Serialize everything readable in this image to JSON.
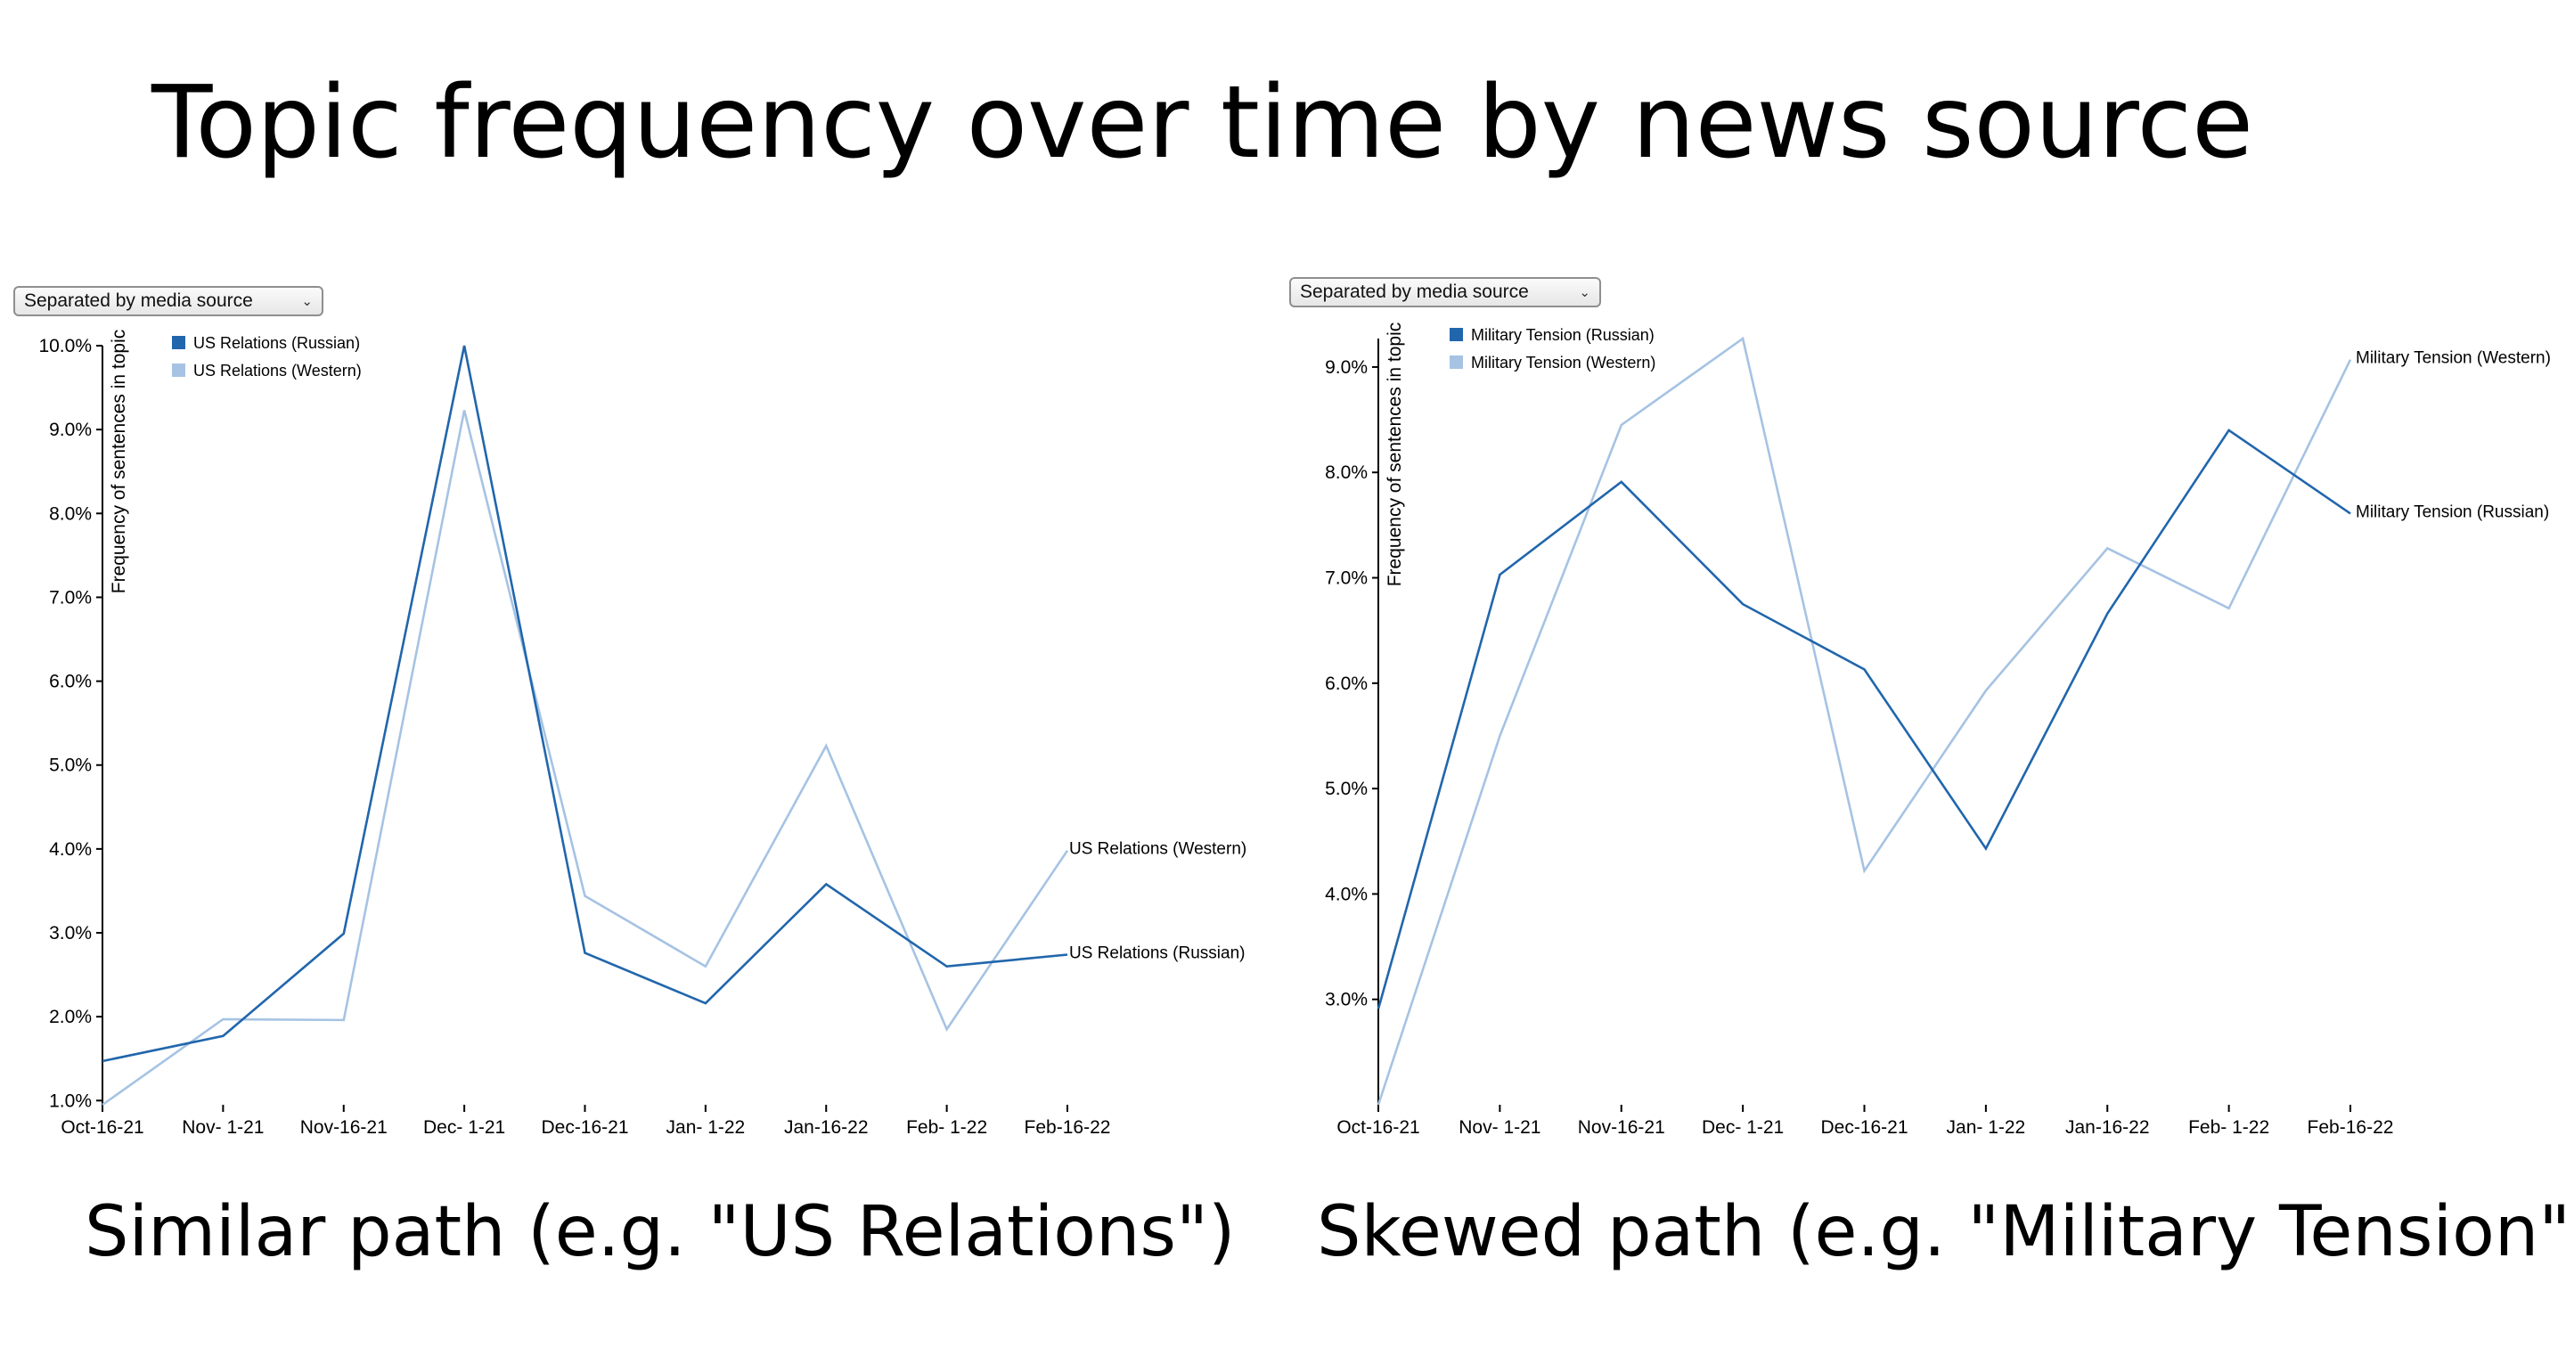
{
  "page": {
    "title": "Topic frequency over time by news source"
  },
  "colors": {
    "russian": "#2166ac",
    "western": "#a6c3e3",
    "axis": "#000000"
  },
  "charts": {
    "left": {
      "caption": "Similar path (e.g. \"US Relations\")",
      "dropdown": {
        "selected": "Separated by media source"
      }
    },
    "right": {
      "caption": "Skewed path (e.g. \"Military Tension\")",
      "dropdown": {
        "selected": "Separated by media source"
      }
    }
  },
  "chart_data": [
    {
      "type": "line",
      "categories": [
        "Oct-16-21",
        "Nov- 1-21",
        "Nov-16-21",
        "Dec- 1-21",
        "Dec-16-21",
        "Jan- 1-22",
        "Jan-16-22",
        "Feb- 1-22",
        "Feb-16-22"
      ],
      "ylabel": "Frequency of sentences in topic",
      "yticks": [
        "1.0%",
        "2.0%",
        "3.0%",
        "4.0%",
        "5.0%",
        "6.0%",
        "7.0%",
        "8.0%",
        "9.0%",
        "10.0%"
      ],
      "ylim": [
        0.95,
        10.0
      ],
      "grid": false,
      "legend_position": "top-left",
      "series": [
        {
          "name": "US Relations (Russian)",
          "color_key": "russian",
          "values": [
            1.47,
            1.77,
            2.99,
            10.0,
            2.76,
            2.16,
            3.58,
            2.6,
            2.74
          ]
        },
        {
          "name": "US Relations (Western)",
          "color_key": "western",
          "values": [
            0.95,
            1.97,
            1.96,
            9.23,
            3.44,
            2.6,
            5.23,
            1.85,
            3.98
          ]
        }
      ]
    },
    {
      "type": "line",
      "categories": [
        "Oct-16-21",
        "Nov- 1-21",
        "Nov-16-21",
        "Dec- 1-21",
        "Dec-16-21",
        "Jan- 1-22",
        "Jan-16-22",
        "Feb- 1-22",
        "Feb-16-22"
      ],
      "ylabel": "Frequency of sentences in topic",
      "yticks": [
        "3.0%",
        "4.0%",
        "5.0%",
        "6.0%",
        "7.0%",
        "8.0%",
        "9.0%"
      ],
      "ylim": [
        2.0,
        9.27
      ],
      "grid": false,
      "legend_position": "top-left",
      "series": [
        {
          "name": "Military Tension (Russian)",
          "color_key": "russian",
          "values": [
            2.91,
            7.03,
            7.91,
            6.75,
            6.13,
            4.43,
            6.66,
            8.4,
            7.61
          ]
        },
        {
          "name": "Military Tension (Western)",
          "color_key": "western",
          "values": [
            2.0,
            5.5,
            8.45,
            9.27,
            4.22,
            5.93,
            7.28,
            6.71,
            9.07
          ]
        }
      ]
    }
  ]
}
